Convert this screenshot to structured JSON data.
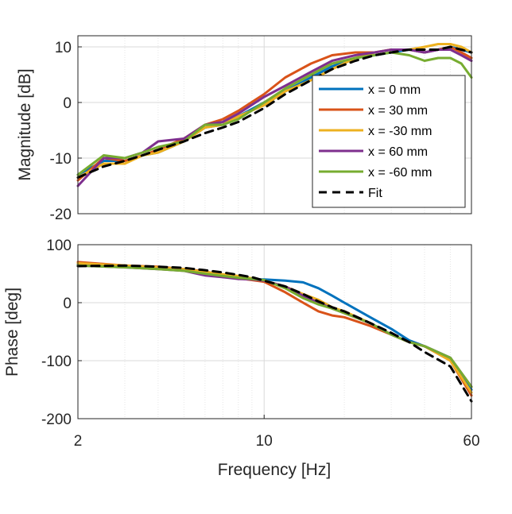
{
  "chart_data": [
    {
      "type": "line",
      "xscale": "log",
      "xlim": [
        2,
        60
      ],
      "ylim": [
        -20,
        12
      ],
      "ylabel": "Magnitude [dB]",
      "xlabel": "",
      "grid": true,
      "legend_location": "lower-right",
      "x_ticks": [],
      "y_ticks": [
        {
          "value": 10,
          "label": "10"
        },
        {
          "value": 0,
          "label": "0"
        },
        {
          "value": -10,
          "label": "-10"
        },
        {
          "value": -20,
          "label": "-20"
        }
      ],
      "series": [
        {
          "name": "x = 0 mm",
          "color": "#0072BD",
          "style": "solid",
          "x": [
            2,
            2.5,
            3,
            3.5,
            4,
            5,
            6,
            7,
            8,
            10,
            12,
            15,
            18,
            22,
            26,
            30,
            35,
            40,
            45,
            50,
            55,
            60
          ],
          "y": [
            -13,
            -10.5,
            -10.5,
            -9.5,
            -9,
            -7,
            -4.5,
            -4,
            -2.5,
            0,
            2,
            4.5,
            6.5,
            8,
            8.5,
            9,
            9.5,
            9,
            9.5,
            10,
            9.5,
            9
          ]
        },
        {
          "name": "x = 30 mm",
          "color": "#D95319",
          "style": "solid",
          "x": [
            2,
            2.5,
            3,
            3.5,
            4,
            5,
            6,
            7,
            8,
            10,
            12,
            15,
            18,
            22,
            26,
            30,
            35,
            40,
            45,
            50,
            55,
            60
          ],
          "y": [
            -14,
            -10,
            -10.5,
            -9.5,
            -8.5,
            -6.5,
            -4,
            -3,
            -1.5,
            1.5,
            4.5,
            7,
            8.5,
            9,
            9,
            9.5,
            9.5,
            9,
            9.5,
            10,
            9,
            8
          ]
        },
        {
          "name": "x = -30 mm",
          "color": "#EDB120",
          "style": "solid",
          "x": [
            2,
            2.5,
            3,
            3.5,
            4,
            5,
            6,
            7,
            8,
            10,
            12,
            15,
            18,
            22,
            26,
            30,
            35,
            40,
            45,
            50,
            55,
            60
          ],
          "y": [
            -13.5,
            -11,
            -11,
            -9.5,
            -9,
            -7,
            -4.5,
            -4,
            -2.5,
            -0.5,
            2,
            4,
            6,
            8,
            9,
            9.5,
            9.5,
            10,
            10.5,
            10.5,
            10,
            9
          ]
        },
        {
          "name": "x = 60 mm",
          "color": "#7E2F8E",
          "style": "solid",
          "x": [
            2,
            2.5,
            3,
            3.5,
            4,
            5,
            6,
            7,
            8,
            10,
            12,
            15,
            18,
            22,
            26,
            30,
            35,
            40,
            45,
            50,
            55,
            60
          ],
          "y": [
            -15,
            -10,
            -10,
            -9,
            -7,
            -6.5,
            -4,
            -3.5,
            -2,
            1,
            3,
            5.5,
            7.5,
            8.5,
            9,
            9.5,
            9.5,
            9,
            9.5,
            9.5,
            8.5,
            7.5
          ]
        },
        {
          "name": "x = -60 mm",
          "color": "#77AC30",
          "style": "solid",
          "x": [
            2,
            2.5,
            3,
            3.5,
            4,
            5,
            6,
            7,
            8,
            10,
            12,
            15,
            18,
            22,
            26,
            30,
            35,
            40,
            45,
            50,
            55,
            60
          ],
          "y": [
            -13,
            -9.5,
            -10,
            -9,
            -8,
            -7,
            -4,
            -4,
            -3,
            0,
            2.5,
            5,
            7,
            8,
            8.5,
            9,
            8.5,
            7.5,
            8,
            8,
            7,
            4.5
          ]
        },
        {
          "name": "Fit",
          "color": "#000000",
          "style": "dashed",
          "x": [
            2,
            2.5,
            3,
            3.5,
            4,
            5,
            6,
            7,
            8,
            10,
            12,
            15,
            18,
            22,
            26,
            30,
            35,
            40,
            45,
            50,
            55,
            60
          ],
          "y": [
            -13.5,
            -11.5,
            -10.5,
            -9.5,
            -8.5,
            -7,
            -5.5,
            -4.5,
            -3.5,
            -1,
            1.5,
            4,
            6,
            7.5,
            8.5,
            9,
            9.5,
            9.5,
            9.5,
            10,
            9.5,
            9
          ]
        }
      ]
    },
    {
      "type": "line",
      "xscale": "log",
      "xlim": [
        2,
        60
      ],
      "ylim": [
        -200,
        100
      ],
      "ylabel": "Phase [deg]",
      "xlabel": "Frequency [Hz]",
      "grid": true,
      "x_ticks": [
        {
          "value": 2,
          "label": "2"
        },
        {
          "value": 10,
          "label": "10"
        },
        {
          "value": 60,
          "label": "60"
        }
      ],
      "y_ticks": [
        {
          "value": 100,
          "label": "100"
        },
        {
          "value": 0,
          "label": "0"
        },
        {
          "value": -100,
          "label": "-100"
        },
        {
          "value": -200,
          "label": "-200"
        }
      ],
      "series": [
        {
          "name": "x = 0 mm",
          "color": "#0072BD",
          "style": "solid",
          "x": [
            2,
            3,
            4,
            5,
            6,
            7,
            8,
            9,
            10,
            12,
            14,
            16,
            18,
            20,
            25,
            30,
            35,
            40,
            50,
            60
          ],
          "y": [
            66,
            63,
            60,
            58,
            52,
            48,
            43,
            40,
            40,
            38,
            35,
            25,
            12,
            0,
            -25,
            -45,
            -65,
            -75,
            -95,
            -150
          ]
        },
        {
          "name": "x = 30 mm",
          "color": "#D95319",
          "style": "solid",
          "x": [
            2,
            3,
            4,
            5,
            6,
            7,
            8,
            9,
            10,
            12,
            14,
            16,
            18,
            20,
            25,
            30,
            35,
            40,
            50,
            60
          ],
          "y": [
            70,
            64,
            62,
            58,
            54,
            47,
            42,
            39,
            36,
            18,
            0,
            -15,
            -22,
            -25,
            -40,
            -55,
            -68,
            -75,
            -100,
            -160
          ]
        },
        {
          "name": "x = -30 mm",
          "color": "#EDB120",
          "style": "solid",
          "x": [
            2,
            3,
            4,
            5,
            6,
            7,
            8,
            9,
            10,
            12,
            14,
            16,
            18,
            20,
            25,
            30,
            35,
            40,
            50,
            60
          ],
          "y": [
            68,
            64,
            61,
            58,
            53,
            49,
            46,
            42,
            38,
            28,
            15,
            5,
            -8,
            -15,
            -35,
            -55,
            -68,
            -75,
            -100,
            -155
          ]
        },
        {
          "name": "x = 60 mm",
          "color": "#7E2F8E",
          "style": "solid",
          "x": [
            2,
            3,
            4,
            5,
            6,
            7,
            8,
            9,
            10,
            12,
            14,
            16,
            18,
            20,
            25,
            30,
            35,
            40,
            50,
            60
          ],
          "y": [
            64,
            61,
            58,
            55,
            47,
            44,
            41,
            40,
            38,
            28,
            12,
            0,
            -10,
            -18,
            -35,
            -55,
            -68,
            -75,
            -95,
            -145
          ]
        },
        {
          "name": "x = -60 mm",
          "color": "#77AC30",
          "style": "solid",
          "x": [
            2,
            3,
            4,
            5,
            6,
            7,
            8,
            9,
            10,
            12,
            14,
            16,
            18,
            20,
            25,
            30,
            35,
            40,
            50,
            60
          ],
          "y": [
            64,
            61,
            58,
            55,
            50,
            46,
            43,
            41,
            39,
            25,
            8,
            -3,
            -10,
            -18,
            -35,
            -55,
            -68,
            -75,
            -95,
            -145
          ]
        },
        {
          "name": "Fit",
          "color": "#000000",
          "style": "dashed",
          "x": [
            2,
            3,
            4,
            5,
            6,
            7,
            8,
            9,
            10,
            12,
            14,
            16,
            18,
            20,
            25,
            30,
            35,
            40,
            50,
            60
          ],
          "y": [
            63,
            64,
            62,
            60,
            56,
            52,
            48,
            44,
            38,
            28,
            15,
            2,
            -8,
            -15,
            -35,
            -52,
            -68,
            -85,
            -110,
            -170
          ]
        }
      ]
    }
  ]
}
